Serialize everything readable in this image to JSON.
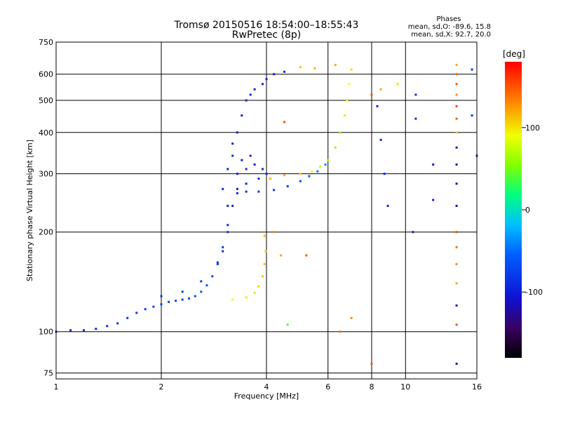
{
  "figure": {
    "title": "Tromsø 20150516 18:54:00–18:55:43",
    "subtitle": "RwPretec (8p)",
    "stats_title": "Phases",
    "stats_o": "mean, sd,O:  -89.6, 15.8",
    "stats_x": "mean, sd,X:  92.7, 20.0",
    "colorbar_unit": "[deg]",
    "colorbar_ticks": [
      "100",
      "0",
      "-100"
    ],
    "colorbar_tick_values": [
      100,
      0,
      -100
    ],
    "colorbar_range": [
      -180,
      180
    ]
  },
  "chart_data": {
    "type": "scatter",
    "xlabel": "Frequency [MHz]",
    "ylabel": "Stationary phase Virtual Height [km]",
    "x_scale": "log",
    "y_scale": "log",
    "xlim": [
      1,
      16
    ],
    "ylim": [
      72,
      750
    ],
    "x_ticks": [
      1,
      2,
      4,
      6,
      8,
      10,
      16
    ],
    "x_tick_labels": [
      "1",
      "2",
      "4",
      "6",
      "8",
      "10",
      "16"
    ],
    "y_ticks": [
      75,
      100,
      200,
      300,
      400,
      500,
      600,
      750
    ],
    "y_tick_labels": [
      "75",
      "100",
      "200",
      "300",
      "400",
      "500",
      "600",
      "750"
    ],
    "grid": true,
    "color_by": "phase [deg]",
    "series": [
      {
        "points": [
          [
            1.0,
            100,
            -90
          ],
          [
            1.1,
            101,
            -90
          ],
          [
            1.2,
            101,
            -90
          ],
          [
            1.3,
            102,
            -90
          ],
          [
            1.4,
            104,
            -88
          ],
          [
            1.5,
            106,
            -86
          ],
          [
            1.6,
            110,
            -84
          ],
          [
            1.7,
            114,
            -80
          ],
          [
            1.8,
            117,
            -78
          ],
          [
            1.9,
            119,
            -76
          ],
          [
            2.0,
            121,
            -74
          ],
          [
            2.1,
            123,
            -72
          ],
          [
            2.2,
            124,
            -72
          ],
          [
            2.3,
            125,
            -72
          ],
          [
            2.4,
            126,
            -70
          ],
          [
            2.5,
            128,
            -68
          ],
          [
            2.6,
            132,
            -66
          ],
          [
            2.7,
            138,
            -66
          ],
          [
            2.8,
            147,
            -70
          ],
          [
            2.9,
            162,
            -76
          ],
          [
            3.0,
            180,
            -82
          ],
          [
            3.1,
            210,
            -88
          ],
          [
            3.2,
            240,
            -92
          ],
          [
            3.3,
            262,
            -96
          ],
          [
            3.5,
            265,
            -90
          ],
          [
            3.8,
            265,
            -86
          ],
          [
            4.2,
            268,
            -84
          ],
          [
            4.6,
            275,
            -80
          ],
          [
            5.0,
            285,
            -70
          ],
          [
            5.3,
            295,
            -60
          ],
          [
            5.6,
            305,
            -50
          ],
          [
            5.9,
            320,
            -40
          ]
        ]
      },
      {
        "points": [
          [
            2.0,
            128,
            -80
          ],
          [
            2.3,
            132,
            -78
          ],
          [
            2.6,
            142,
            -76
          ],
          [
            2.9,
            160,
            -82
          ],
          [
            3.0,
            175,
            -88
          ],
          [
            3.1,
            200,
            -90
          ],
          [
            3.1,
            240,
            -92
          ],
          [
            3.0,
            270,
            -94
          ],
          [
            3.1,
            310,
            -96
          ],
          [
            3.2,
            340,
            -96
          ],
          [
            3.2,
            370,
            -96
          ],
          [
            3.3,
            400,
            -96
          ],
          [
            3.4,
            450,
            -96
          ],
          [
            3.5,
            500,
            -96
          ],
          [
            3.6,
            520,
            -96
          ],
          [
            3.7,
            540,
            -96
          ],
          [
            3.9,
            560,
            -96
          ],
          [
            4.0,
            580,
            -96
          ],
          [
            4.2,
            600,
            -96
          ],
          [
            4.5,
            610,
            -96
          ]
        ]
      },
      {
        "points": [
          [
            3.2,
            125,
            90
          ],
          [
            3.5,
            127,
            95
          ],
          [
            3.7,
            131,
            100
          ],
          [
            3.8,
            137,
            105
          ],
          [
            3.9,
            147,
            108
          ],
          [
            3.95,
            160,
            110
          ],
          [
            3.98,
            175,
            112
          ],
          [
            3.95,
            195,
            112
          ],
          [
            4.1,
            290,
            120
          ],
          [
            4.5,
            297,
            120
          ],
          [
            5.0,
            300,
            110
          ],
          [
            5.4,
            305,
            90
          ],
          [
            5.7,
            315,
            75
          ],
          [
            6.0,
            330,
            65
          ],
          [
            6.3,
            360,
            60
          ],
          [
            6.5,
            400,
            60
          ],
          [
            6.7,
            450,
            70
          ],
          [
            6.8,
            500,
            80
          ],
          [
            6.9,
            560,
            90
          ],
          [
            7.0,
            620,
            100
          ],
          [
            5.0,
            630,
            110
          ],
          [
            5.5,
            625,
            115
          ],
          [
            6.3,
            640,
            120
          ]
        ]
      },
      {
        "points": [
          [
            3.3,
            300,
            -95
          ],
          [
            3.5,
            310,
            -94
          ],
          [
            3.7,
            320,
            -93
          ],
          [
            3.9,
            310,
            -92
          ],
          [
            4.0,
            300,
            -90
          ],
          [
            3.4,
            330,
            -96
          ],
          [
            3.6,
            340,
            -95
          ],
          [
            3.8,
            290,
            -92
          ],
          [
            3.5,
            280,
            -95
          ],
          [
            3.3,
            270,
            -96
          ]
        ]
      },
      {
        "points": [
          [
            8.3,
            480,
            -95
          ],
          [
            8.5,
            380,
            -95
          ],
          [
            8.7,
            300,
            -95
          ],
          [
            8.9,
            240,
            -95
          ],
          [
            10.7,
            520,
            -90
          ],
          [
            10.7,
            440,
            -90
          ],
          [
            12.0,
            250,
            -100
          ],
          [
            12.0,
            320,
            -100
          ],
          [
            10.5,
            200,
            -100
          ],
          [
            15.5,
            620,
            -80
          ],
          [
            15.5,
            450,
            -80
          ],
          [
            16.0,
            340,
            -80
          ]
        ]
      },
      {
        "points": [
          [
            14.0,
            640,
            120
          ],
          [
            14.0,
            600,
            140
          ],
          [
            14.0,
            560,
            150
          ],
          [
            14.0,
            520,
            130
          ],
          [
            14.0,
            480,
            160
          ],
          [
            14.0,
            440,
            150
          ],
          [
            14.0,
            400,
            110
          ],
          [
            14.0,
            360,
            -110
          ],
          [
            14.0,
            320,
            -115
          ],
          [
            14.0,
            280,
            -120
          ],
          [
            14.0,
            240,
            -110
          ],
          [
            14.0,
            200,
            150
          ],
          [
            14.0,
            180,
            140
          ],
          [
            14.0,
            160,
            130
          ],
          [
            14.0,
            140,
            120
          ],
          [
            14.0,
            120,
            -100
          ],
          [
            14.0,
            105,
            150
          ],
          [
            14.0,
            80,
            -110
          ]
        ]
      },
      {
        "points": [
          [
            8.0,
            520,
            150
          ],
          [
            8.5,
            540,
            120
          ],
          [
            9.5,
            560,
            100
          ],
          [
            4.5,
            430,
            150
          ],
          [
            4.2,
            200,
            130
          ],
          [
            4.4,
            170,
            120
          ],
          [
            5.2,
            170,
            150
          ],
          [
            6.5,
            100,
            140
          ],
          [
            7.0,
            110,
            130
          ],
          [
            8.0,
            80,
            150
          ],
          [
            4.6,
            105,
            40
          ]
        ]
      }
    ]
  }
}
